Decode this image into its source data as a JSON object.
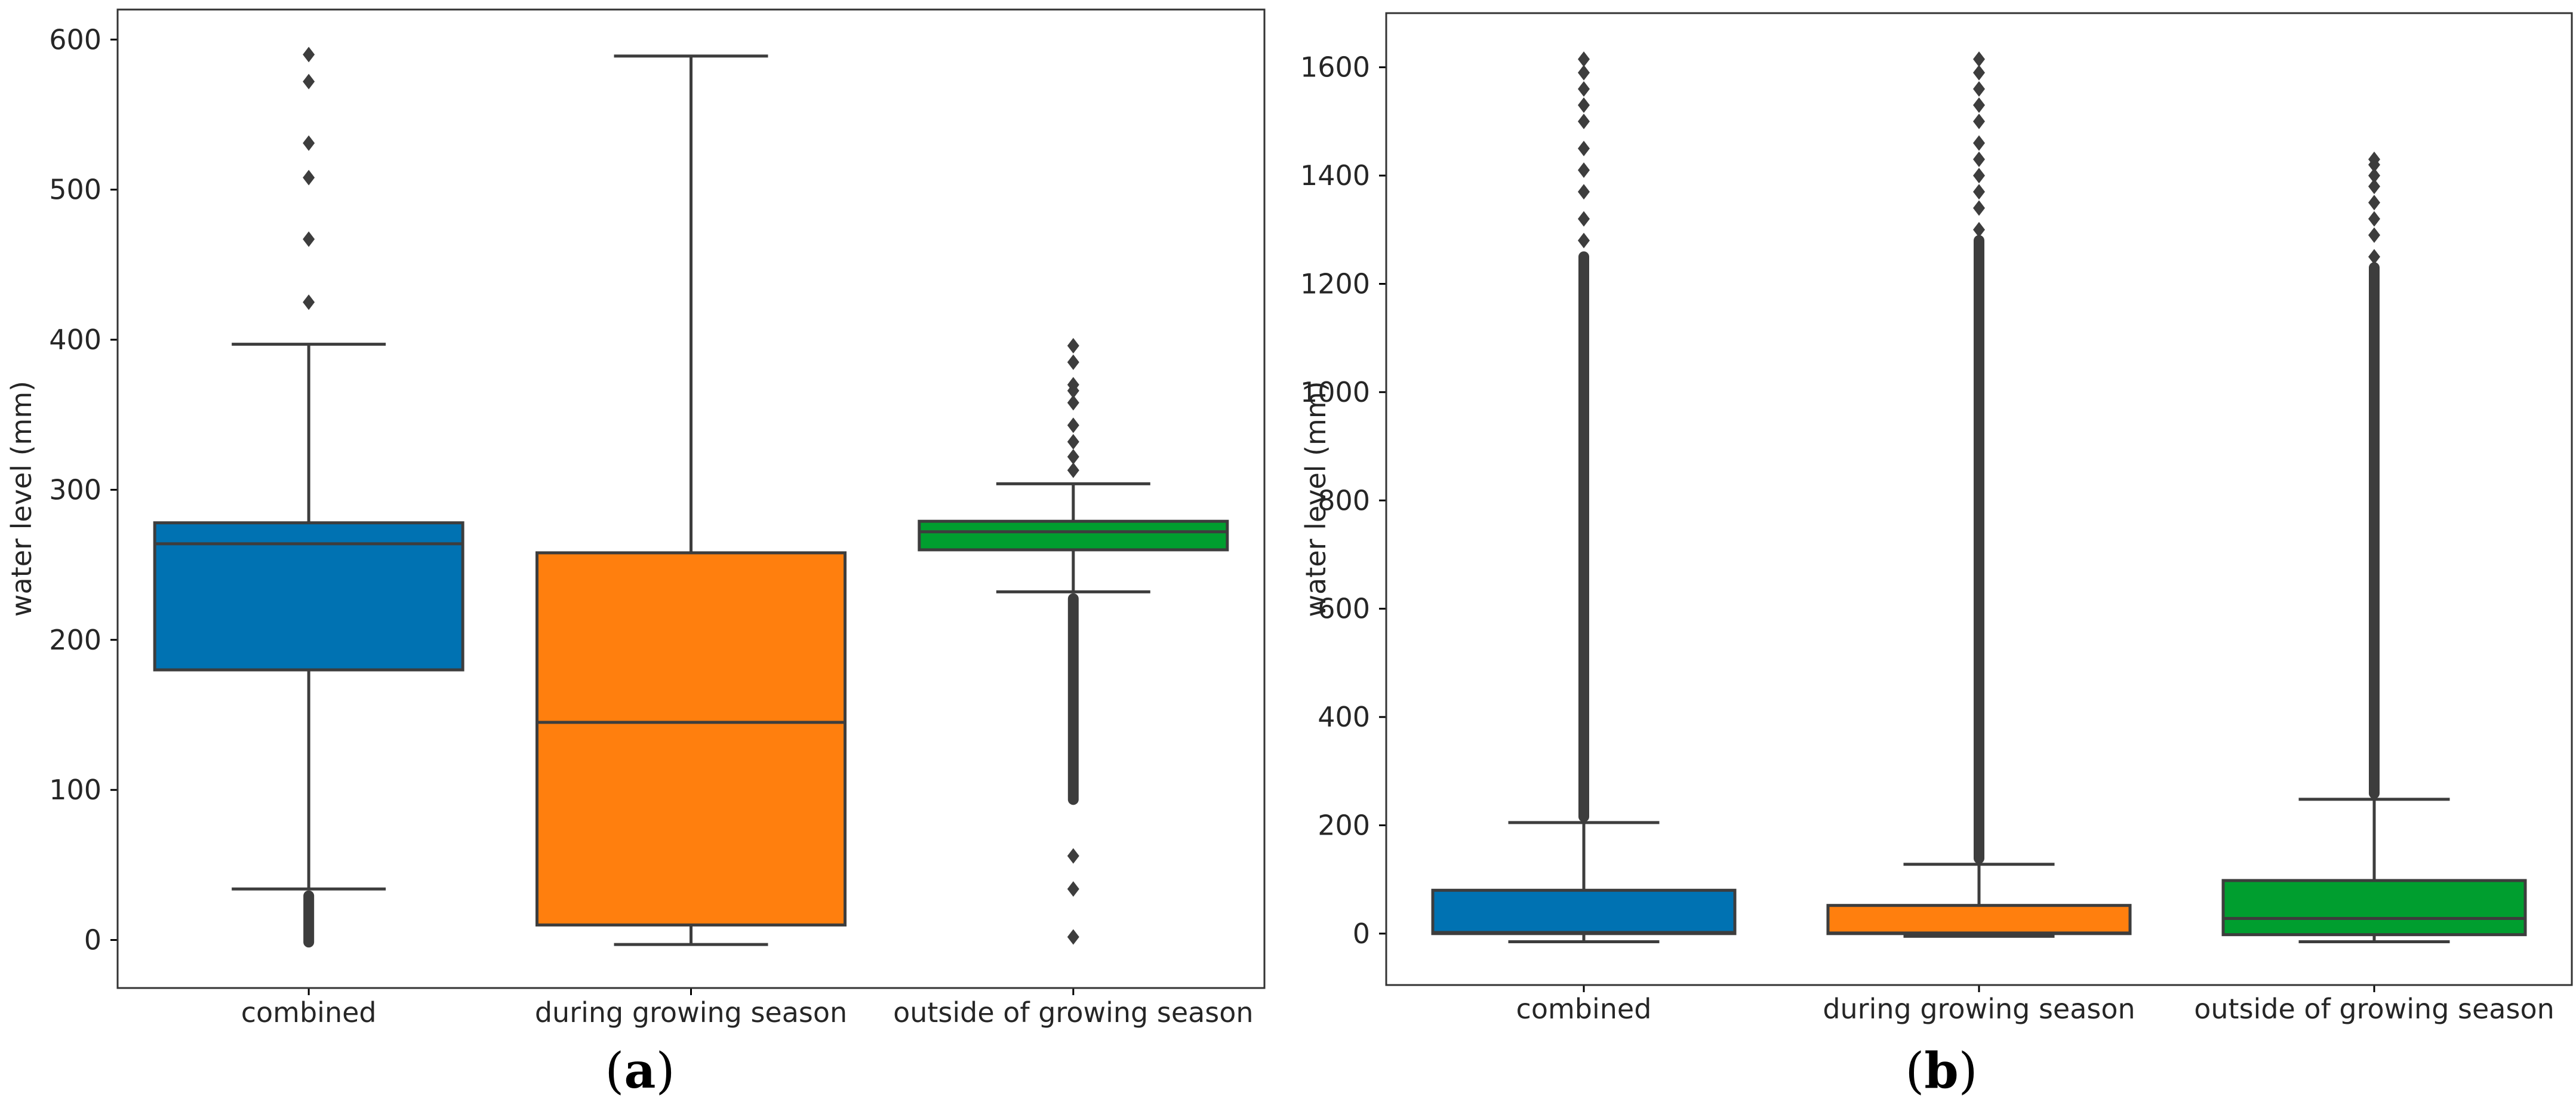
{
  "chart_data": [
    {
      "type": "box",
      "panel_label": "a",
      "ylabel": "water level (mm)",
      "xlabel": "",
      "ylim": [
        -32,
        620
      ],
      "yticks": [
        0,
        100,
        200,
        300,
        400,
        500,
        600
      ],
      "categories": [
        "combined",
        "during growing season",
        "outside of growing season"
      ],
      "colors": [
        "#0072b2",
        "#ff7f0e",
        "#009e2f"
      ],
      "boxes": [
        {
          "name": "combined",
          "whisker_low": 34,
          "q1": 180,
          "median": 264,
          "q3": 278,
          "whisker_high": 397,
          "outliers": [
            425,
            467,
            508,
            531,
            572,
            590
          ],
          "outlier_band": [
            -5,
            33
          ]
        },
        {
          "name": "during growing season",
          "whisker_low": -3,
          "q1": 10,
          "median": 145,
          "q3": 258,
          "whisker_high": 589,
          "outliers": [],
          "outlier_band": null
        },
        {
          "name": "outside of growing season",
          "whisker_low": 232,
          "q1": 260,
          "median": 272,
          "q3": 279,
          "whisker_high": 304,
          "outliers": [
            2,
            34,
            56,
            313,
            322,
            332,
            343,
            358,
            366,
            370,
            385,
            396
          ],
          "outlier_band": [
            90,
            231
          ]
        }
      ]
    },
    {
      "type": "box",
      "panel_label": "b",
      "ylabel": "water level (mm)",
      "xlabel": "",
      "ylim": [
        -95,
        1700
      ],
      "yticks": [
        0,
        200,
        400,
        600,
        800,
        1000,
        1200,
        1400,
        1600
      ],
      "categories": [
        "combined",
        "during growing season",
        "outside of growing season"
      ],
      "colors": [
        "#0072b2",
        "#ff7f0e",
        "#009e2f"
      ],
      "boxes": [
        {
          "name": "combined",
          "whisker_low": -15,
          "q1": 0,
          "median": 2,
          "q3": 80,
          "whisker_high": 205,
          "outliers": [
            1280,
            1320,
            1370,
            1410,
            1450,
            1500,
            1530,
            1560,
            1590,
            1615
          ],
          "outlier_band": [
            206,
            1260
          ]
        },
        {
          "name": "during growing season",
          "whisker_low": -5,
          "q1": 0,
          "median": 1,
          "q3": 52,
          "whisker_high": 128,
          "outliers": [
            1300,
            1340,
            1370,
            1400,
            1430,
            1460,
            1500,
            1530,
            1560,
            1590,
            1615
          ],
          "outlier_band": [
            129,
            1290
          ]
        },
        {
          "name": "outside of growing season",
          "whisker_low": -15,
          "q1": -2,
          "median": 28,
          "q3": 98,
          "whisker_high": 248,
          "outliers": [
            1250,
            1290,
            1320,
            1350,
            1380,
            1400,
            1420,
            1430
          ],
          "outlier_band": [
            249,
            1240
          ]
        }
      ]
    }
  ]
}
